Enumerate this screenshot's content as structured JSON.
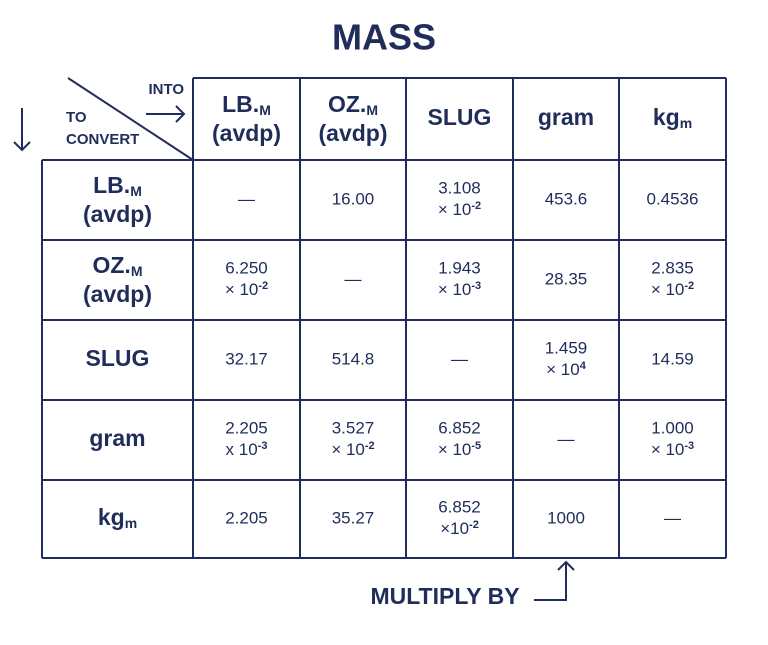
{
  "title": "MASS",
  "corner": {
    "into": "INTO",
    "to_convert": [
      "TO",
      "CONVERT"
    ]
  },
  "columns": [
    {
      "main": "LB.",
      "sub": "M",
      "line2": "(avdp)"
    },
    {
      "main": "OZ.",
      "sub": "M",
      "line2": "(avdp)"
    },
    {
      "main": "SLUG"
    },
    {
      "main": "gram"
    },
    {
      "main": "kg",
      "sub": "m"
    }
  ],
  "rows": [
    {
      "label": {
        "main": "LB.",
        "sub": "M",
        "line2": "(avdp)"
      },
      "cells": [
        "—",
        "16.00",
        {
          "mantissa": "3.108",
          "times": "× 10",
          "exp": "-2"
        },
        "453.6",
        "0.4536"
      ]
    },
    {
      "label": {
        "main": "OZ.",
        "sub": "M",
        "line2": "(avdp)"
      },
      "cells": [
        {
          "mantissa": "6.250",
          "times": "× 10",
          "exp": "-2"
        },
        "—",
        {
          "mantissa": "1.943",
          "times": "× 10",
          "exp": "-3"
        },
        "28.35",
        {
          "mantissa": "2.835",
          "times": "× 10",
          "exp": "-2"
        }
      ]
    },
    {
      "label": {
        "main": "SLUG"
      },
      "cells": [
        "32.17",
        "514.8",
        "—",
        {
          "mantissa": "1.459",
          "times": "× 10",
          "exp": "4"
        },
        "14.59"
      ]
    },
    {
      "label": {
        "main": "gram"
      },
      "cells": [
        {
          "mantissa": "2.205",
          "times": "x 10",
          "exp": "-3"
        },
        {
          "mantissa": "3.527",
          "times": "× 10",
          "exp": "-2"
        },
        {
          "mantissa": "6.852",
          "times": "× 10",
          "exp": "-5"
        },
        "—",
        {
          "mantissa": "1.000",
          "times": "× 10",
          "exp": "-3"
        }
      ]
    },
    {
      "label": {
        "main": "kg",
        "sub": "m"
      },
      "cells": [
        "2.205",
        "35.27",
        {
          "mantissa": "6.852",
          "times": "×10",
          "exp": "-2"
        },
        "1000",
        "—"
      ]
    }
  ],
  "footer": "MULTIPLY BY"
}
